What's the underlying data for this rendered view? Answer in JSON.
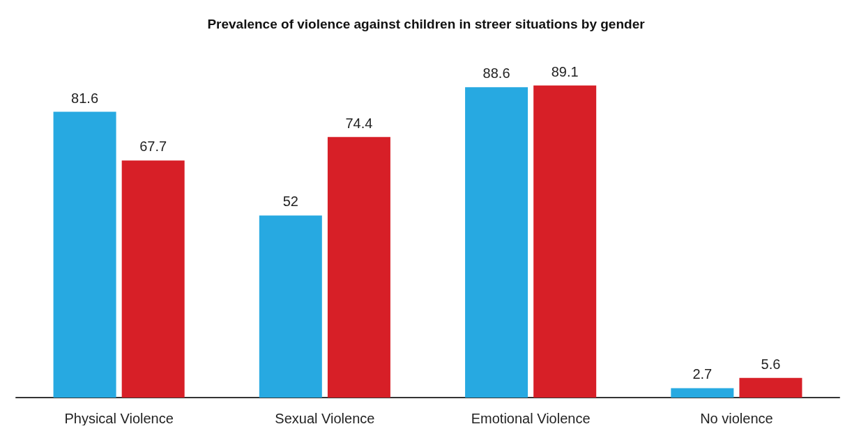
{
  "chart_data": {
    "type": "bar",
    "title": "Prevalence of violence against children in streer situations by gender",
    "categories": [
      "Physical Violence",
      "Sexual Violence",
      "Emotional Violence",
      "No violence"
    ],
    "series": [
      {
        "color": "#27a9e1",
        "values": [
          81.6,
          52,
          88.6,
          2.7
        ]
      },
      {
        "color": "#d71f27",
        "values": [
          67.7,
          74.4,
          89.1,
          5.6
        ]
      }
    ],
    "data_labels": true
  }
}
